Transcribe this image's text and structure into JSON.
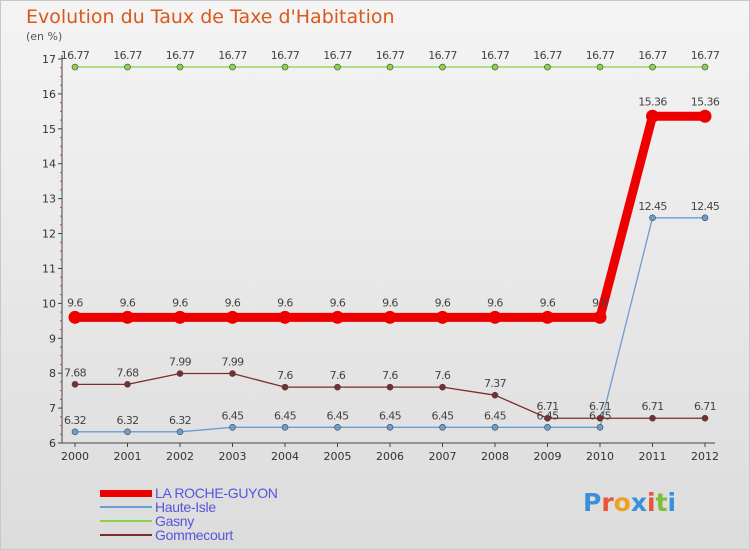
{
  "chart_data": {
    "type": "line",
    "title": "Evolution du Taux de Taxe d'Habitation",
    "unit_label": "(en %)",
    "categories": [
      "2000",
      "2001",
      "2002",
      "2003",
      "2004",
      "2005",
      "2006",
      "2007",
      "2008",
      "2009",
      "2010",
      "2011",
      "2012"
    ],
    "ylim": [
      6,
      17
    ],
    "yticks": [
      6,
      7,
      8,
      9,
      10,
      11,
      12,
      13,
      14,
      15,
      16,
      17
    ],
    "grid": false,
    "legend_position": "bottom-left",
    "series": [
      {
        "name": "LA ROCHE-GUYON",
        "color": "#ee0000",
        "emphasis": true,
        "values": [
          9.6,
          9.6,
          9.6,
          9.6,
          9.6,
          9.6,
          9.6,
          9.6,
          9.6,
          9.6,
          9.6,
          15.36,
          15.36
        ],
        "labels": [
          "9.6",
          "9.6",
          "9.6",
          "9.6",
          "9.6",
          "9.6",
          "9.6",
          "9.6",
          "9.6",
          "9.6",
          "9.6",
          "15.36",
          "15.36"
        ]
      },
      {
        "name": "Haute-Isle",
        "color": "#6a9ed0",
        "values": [
          6.32,
          6.32,
          6.32,
          6.45,
          6.45,
          6.45,
          6.45,
          6.45,
          6.45,
          6.45,
          6.45,
          12.45,
          12.45
        ],
        "labels": [
          "6.32",
          "6.32",
          "6.32",
          "6.45",
          "6.45",
          "6.45",
          "6.45",
          "6.45",
          "6.45",
          "6.45",
          "6.45",
          "12.45",
          "12.45"
        ]
      },
      {
        "name": "Gasny",
        "color": "#8ad24a",
        "values": [
          16.77,
          16.77,
          16.77,
          16.77,
          16.77,
          16.77,
          16.77,
          16.77,
          16.77,
          16.77,
          16.77,
          16.77,
          16.77
        ],
        "labels": [
          "16.77",
          "16.77",
          "16.77",
          "16.77",
          "16.77",
          "16.77",
          "16.77",
          "16.77",
          "16.77",
          "16.77",
          "16.77",
          "16.77",
          "16.77"
        ]
      },
      {
        "name": "Gommecourt",
        "color": "#7a2e2e",
        "values": [
          7.68,
          7.68,
          7.99,
          7.99,
          7.6,
          7.6,
          7.6,
          7.6,
          7.37,
          6.71,
          6.71,
          6.71,
          6.71
        ],
        "labels": [
          "7.68",
          "7.68",
          "7.99",
          "7.99",
          "7.6",
          "7.6",
          "7.6",
          "7.6",
          "7.37",
          "6.71",
          "6.71",
          "6.71",
          "6.71"
        ]
      }
    ]
  },
  "logo": {
    "text": "Proxiti",
    "letters": [
      "P",
      "r",
      "o",
      "x",
      "i",
      "t",
      "i"
    ],
    "colors": [
      "#3b8fd9",
      "#e9553a",
      "#f0a020",
      "#3b8fd9",
      "#e9553a",
      "#7cbf3a",
      "#3b8fd9"
    ]
  }
}
